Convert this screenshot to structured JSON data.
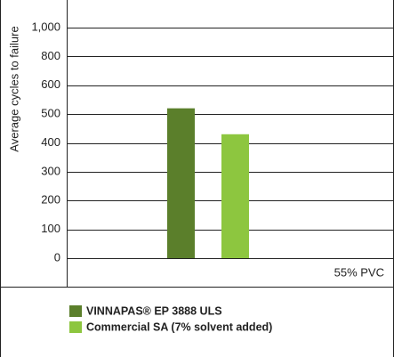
{
  "chart_data": {
    "type": "bar",
    "y_label": "Average cycles to failure",
    "categories": [
      "55% PVC"
    ],
    "series": [
      {
        "name": "VINNAPAS® EP 3888 ULS",
        "color": "#5b7f2b",
        "values": [
          520
        ]
      },
      {
        "name": "Commercial SA (7% solvent added)",
        "color": "#8dc63f",
        "values": [
          430
        ]
      }
    ],
    "ylim": [
      0,
      1000
    ],
    "yticks": [
      0,
      100,
      200,
      300,
      400,
      500,
      600,
      800,
      {
        "value": 1000,
        "label": "1,000"
      }
    ],
    "grid": true
  }
}
